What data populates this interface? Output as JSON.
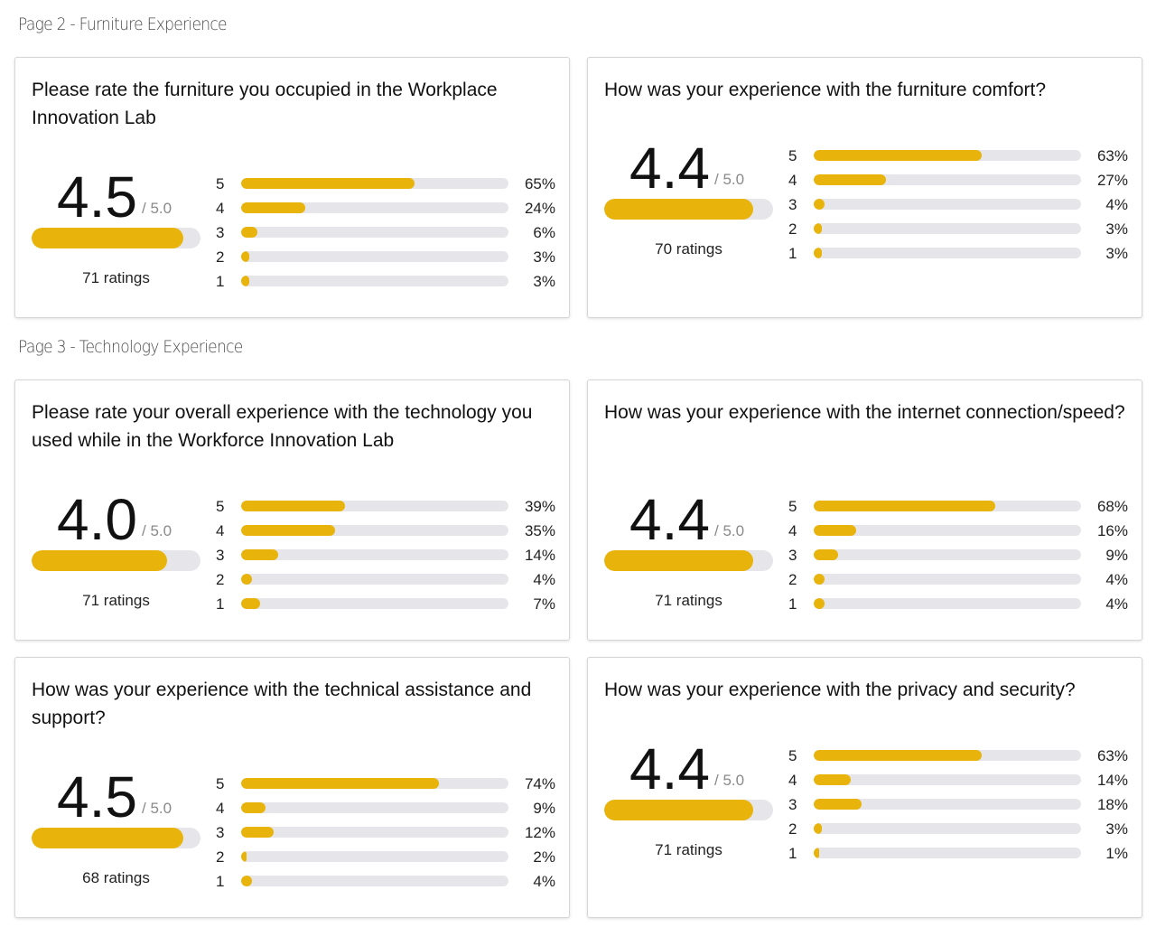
{
  "sections": [
    {
      "title": "Page 2 - Furniture Experience"
    },
    {
      "title": "Page 3 - Technology Experience"
    }
  ],
  "accent_color": "#e8b40b",
  "track_color": "#e6e6ea",
  "cards": [
    {
      "question": "Please rate the furniture you occupied in the Workplace Innovation Lab",
      "score": "4.5",
      "scale": "/ 5.0",
      "score_fraction": 0.9,
      "ratings": "71 ratings",
      "distribution": [
        {
          "label": "5",
          "pct": "65%",
          "value": 65
        },
        {
          "label": "4",
          "pct": "24%",
          "value": 24
        },
        {
          "label": "3",
          "pct": "6%",
          "value": 6
        },
        {
          "label": "2",
          "pct": "3%",
          "value": 3
        },
        {
          "label": "1",
          "pct": "3%",
          "value": 3
        }
      ]
    },
    {
      "question": "How was your experience with the furniture comfort?",
      "score": "4.4",
      "scale": "/ 5.0",
      "score_fraction": 0.88,
      "ratings": "70 ratings",
      "distribution": [
        {
          "label": "5",
          "pct": "63%",
          "value": 63
        },
        {
          "label": "4",
          "pct": "27%",
          "value": 27
        },
        {
          "label": "3",
          "pct": "4%",
          "value": 4
        },
        {
          "label": "2",
          "pct": "3%",
          "value": 3
        },
        {
          "label": "1",
          "pct": "3%",
          "value": 3
        }
      ]
    },
    {
      "question": "Please rate your overall experience with the technology you used while in the Workforce Innovation Lab",
      "score": "4.0",
      "scale": "/ 5.0",
      "score_fraction": 0.8,
      "ratings": "71 ratings",
      "distribution": [
        {
          "label": "5",
          "pct": "39%",
          "value": 39
        },
        {
          "label": "4",
          "pct": "35%",
          "value": 35
        },
        {
          "label": "3",
          "pct": "14%",
          "value": 14
        },
        {
          "label": "2",
          "pct": "4%",
          "value": 4
        },
        {
          "label": "1",
          "pct": "7%",
          "value": 7
        }
      ]
    },
    {
      "question": "How was your experience with the internet connection/speed?",
      "score": "4.4",
      "scale": "/ 5.0",
      "score_fraction": 0.88,
      "ratings": "71 ratings",
      "distribution": [
        {
          "label": "5",
          "pct": "68%",
          "value": 68
        },
        {
          "label": "4",
          "pct": "16%",
          "value": 16
        },
        {
          "label": "3",
          "pct": "9%",
          "value": 9
        },
        {
          "label": "2",
          "pct": "4%",
          "value": 4
        },
        {
          "label": "1",
          "pct": "4%",
          "value": 4
        }
      ]
    },
    {
      "question": "How was your experience with the technical assistance and support?",
      "score": "4.5",
      "scale": "/ 5.0",
      "score_fraction": 0.9,
      "ratings": "68 ratings",
      "distribution": [
        {
          "label": "5",
          "pct": "74%",
          "value": 74
        },
        {
          "label": "4",
          "pct": "9%",
          "value": 9
        },
        {
          "label": "3",
          "pct": "12%",
          "value": 12
        },
        {
          "label": "2",
          "pct": "2%",
          "value": 2
        },
        {
          "label": "1",
          "pct": "4%",
          "value": 4
        }
      ]
    },
    {
      "question": "How was your experience with the privacy and security?",
      "score": "4.4",
      "scale": "/ 5.0",
      "score_fraction": 0.88,
      "ratings": "71 ratings",
      "distribution": [
        {
          "label": "5",
          "pct": "63%",
          "value": 63
        },
        {
          "label": "4",
          "pct": "14%",
          "value": 14
        },
        {
          "label": "3",
          "pct": "18%",
          "value": 18
        },
        {
          "label": "2",
          "pct": "3%",
          "value": 3
        },
        {
          "label": "1",
          "pct": "1%",
          "value": 1
        }
      ]
    }
  ]
}
